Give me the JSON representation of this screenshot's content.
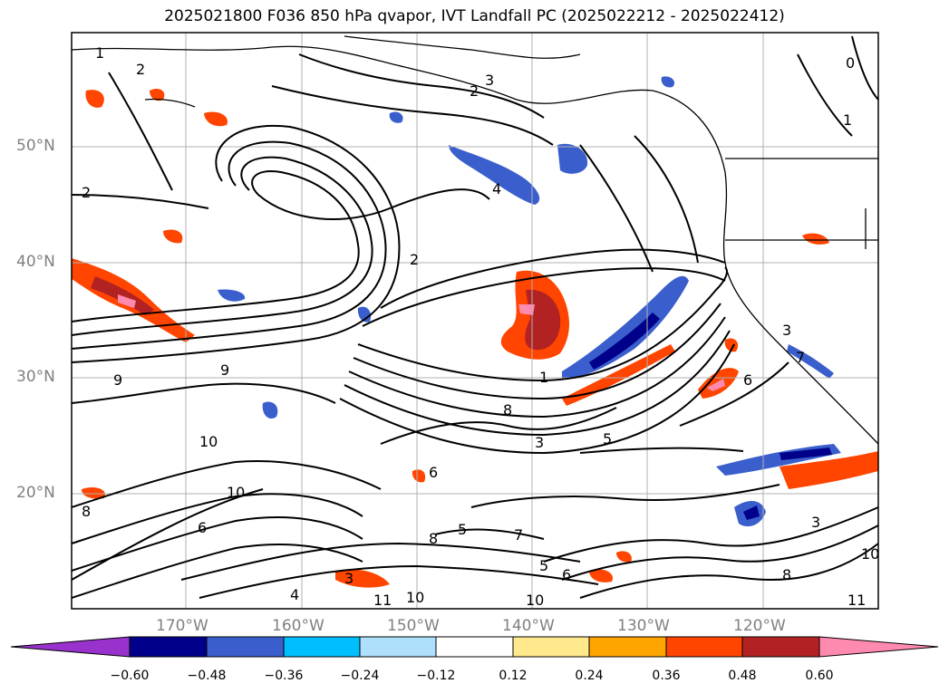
{
  "title": "2025021800 F036 850 hPa qvapor, IVT Landfall PC (2025022212 - 2025022412)",
  "map": {
    "lat_labels": [
      "50°N",
      "40°N",
      "30°N",
      "20°N"
    ],
    "lon_labels": [
      "170°W",
      "160°W",
      "150°W",
      "140°W",
      "130°W",
      "120°W"
    ],
    "contour_labels": [
      "1",
      "2",
      "3",
      "2",
      "4",
      "2",
      "1",
      "2",
      "9",
      "9",
      "8",
      "5",
      "3",
      "6",
      "7",
      "5",
      "10",
      "10",
      "8",
      "6",
      "3",
      "4",
      "11",
      "10",
      "6",
      "8",
      "0",
      "1",
      "3",
      "7",
      "6",
      "5",
      "8",
      "10",
      "11",
      "10",
      "3"
    ]
  },
  "colorbar": {
    "tick_labels": [
      "−0.60",
      "−0.48",
      "−0.36",
      "−0.24",
      "−0.12",
      "0.12",
      "0.24",
      "0.36",
      "0.48",
      "0.60"
    ],
    "colors": [
      "#9932cc",
      "#00008b",
      "#3a5fcd",
      "#00bfff",
      "#aee0fb",
      "#ffffff",
      "#ffe98c",
      "#ffa500",
      "#ff4500",
      "#b22222",
      "#ff8ab0"
    ]
  }
}
